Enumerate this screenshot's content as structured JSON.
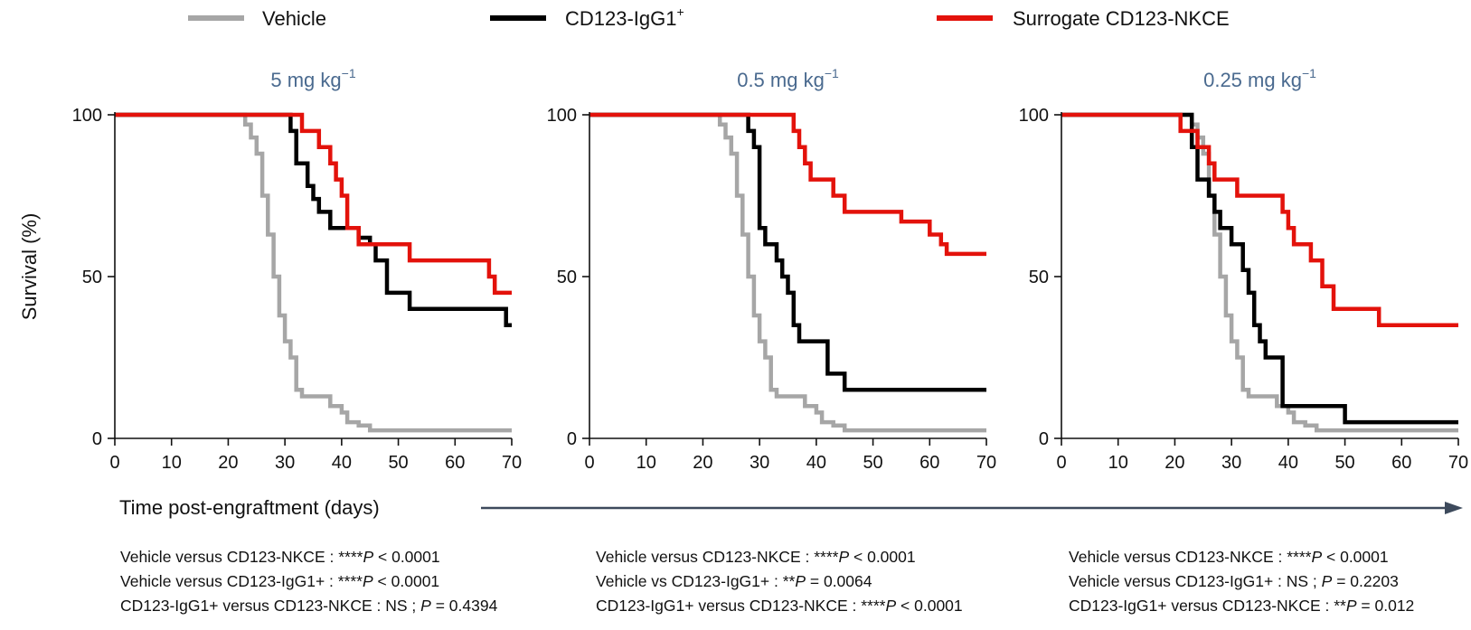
{
  "legend": [
    {
      "label": "Vehicle",
      "color": "#a6a6a6"
    },
    {
      "label": "CD123-IgG1",
      "sup": "+",
      "color": "#000000"
    },
    {
      "label": "Surrogate CD123-NKCE",
      "color": "#e3120b"
    }
  ],
  "y_label": "Survival (%)",
  "x_label": "Time post-engraftment (days)",
  "chart_data": [
    {
      "type": "line",
      "step": true,
      "title": "5 mg kg",
      "title_sup": "−1",
      "xlim": [
        0,
        70
      ],
      "ylim": [
        0,
        100
      ],
      "xticks": [
        0,
        10,
        20,
        30,
        40,
        50,
        60,
        70
      ],
      "yticks": [
        0,
        50,
        100
      ],
      "series": [
        {
          "name": "Vehicle",
          "color": "#a6a6a6",
          "points": [
            [
              0,
              100
            ],
            [
              22,
              100
            ],
            [
              23,
              97
            ],
            [
              24,
              93
            ],
            [
              25,
              88
            ],
            [
              26,
              75
            ],
            [
              27,
              63
            ],
            [
              28,
              50
            ],
            [
              29,
              38
            ],
            [
              30,
              30
            ],
            [
              31,
              25
            ],
            [
              32,
              15
            ],
            [
              33,
              13
            ],
            [
              38,
              10
            ],
            [
              40,
              8
            ],
            [
              41,
              5
            ],
            [
              43,
              4
            ],
            [
              45,
              2.5
            ],
            [
              70,
              2.5
            ]
          ]
        },
        {
          "name": "CD123-IgG1+",
          "color": "#000000",
          "points": [
            [
              0,
              100
            ],
            [
              30,
              100
            ],
            [
              31,
              95
            ],
            [
              32,
              85
            ],
            [
              34,
              78
            ],
            [
              35,
              74
            ],
            [
              36,
              70
            ],
            [
              38,
              65
            ],
            [
              43,
              62
            ],
            [
              45,
              60
            ],
            [
              46,
              55
            ],
            [
              48,
              45
            ],
            [
              52,
              40
            ],
            [
              69,
              40
            ],
            [
              69,
              35
            ],
            [
              70,
              35
            ]
          ]
        },
        {
          "name": "Surrogate CD123-NKCE",
          "color": "#e3120b",
          "points": [
            [
              0,
              100
            ],
            [
              32,
              100
            ],
            [
              33,
              95
            ],
            [
              36,
              90
            ],
            [
              38,
              85
            ],
            [
              39,
              80
            ],
            [
              40,
              75
            ],
            [
              41,
              65
            ],
            [
              43,
              60
            ],
            [
              52,
              55
            ],
            [
              65,
              55
            ],
            [
              66,
              50
            ],
            [
              67,
              45
            ],
            [
              70,
              45
            ]
          ]
        }
      ]
    },
    {
      "type": "line",
      "step": true,
      "title": "0.5 mg kg",
      "title_sup": "−1",
      "xlim": [
        0,
        70
      ],
      "ylim": [
        0,
        100
      ],
      "xticks": [
        0,
        10,
        20,
        30,
        40,
        50,
        60,
        70
      ],
      "yticks": [
        0,
        50,
        100
      ],
      "series": [
        {
          "name": "Vehicle",
          "color": "#a6a6a6",
          "points": [
            [
              0,
              100
            ],
            [
              22,
              100
            ],
            [
              23,
              97
            ],
            [
              24,
              93
            ],
            [
              25,
              88
            ],
            [
              26,
              75
            ],
            [
              27,
              63
            ],
            [
              28,
              50
            ],
            [
              29,
              38
            ],
            [
              30,
              30
            ],
            [
              31,
              25
            ],
            [
              32,
              15
            ],
            [
              33,
              13
            ],
            [
              38,
              10
            ],
            [
              40,
              8
            ],
            [
              41,
              5
            ],
            [
              43,
              4
            ],
            [
              45,
              2.5
            ],
            [
              70,
              2.5
            ]
          ]
        },
        {
          "name": "CD123-IgG1+",
          "color": "#000000",
          "points": [
            [
              0,
              100
            ],
            [
              27,
              100
            ],
            [
              28,
              95
            ],
            [
              29,
              90
            ],
            [
              30,
              65
            ],
            [
              31,
              60
            ],
            [
              33,
              55
            ],
            [
              34,
              50
            ],
            [
              35,
              45
            ],
            [
              36,
              35
            ],
            [
              37,
              30
            ],
            [
              42,
              20
            ],
            [
              45,
              15
            ],
            [
              70,
              15
            ]
          ]
        },
        {
          "name": "Surrogate CD123-NKCE",
          "color": "#e3120b",
          "points": [
            [
              0,
              100
            ],
            [
              35,
              100
            ],
            [
              36,
              95
            ],
            [
              37,
              90
            ],
            [
              38,
              85
            ],
            [
              39,
              80
            ],
            [
              43,
              75
            ],
            [
              45,
              70
            ],
            [
              55,
              67
            ],
            [
              60,
              63
            ],
            [
              62,
              60
            ],
            [
              63,
              57
            ],
            [
              70,
              57
            ]
          ]
        }
      ]
    },
    {
      "type": "line",
      "step": true,
      "title": "0.25 mg kg",
      "title_sup": "−1",
      "xlim": [
        0,
        70
      ],
      "ylim": [
        0,
        100
      ],
      "xticks": [
        0,
        10,
        20,
        30,
        40,
        50,
        60,
        70
      ],
      "yticks": [
        0,
        50,
        100
      ],
      "series": [
        {
          "name": "Vehicle",
          "color": "#a6a6a6",
          "points": [
            [
              0,
              100
            ],
            [
              22,
              100
            ],
            [
              23,
              97
            ],
            [
              24,
              93
            ],
            [
              25,
              88
            ],
            [
              26,
              75
            ],
            [
              27,
              63
            ],
            [
              28,
              50
            ],
            [
              29,
              38
            ],
            [
              30,
              30
            ],
            [
              31,
              25
            ],
            [
              32,
              15
            ],
            [
              33,
              13
            ],
            [
              38,
              10
            ],
            [
              40,
              8
            ],
            [
              41,
              5
            ],
            [
              43,
              4
            ],
            [
              45,
              2.5
            ],
            [
              70,
              2.5
            ]
          ]
        },
        {
          "name": "CD123-IgG1+",
          "color": "#000000",
          "points": [
            [
              0,
              100
            ],
            [
              22,
              100
            ],
            [
              23,
              90
            ],
            [
              24,
              80
            ],
            [
              26,
              75
            ],
            [
              27,
              70
            ],
            [
              28,
              65
            ],
            [
              30,
              60
            ],
            [
              32,
              52
            ],
            [
              33,
              45
            ],
            [
              34,
              35
            ],
            [
              35,
              30
            ],
            [
              36,
              25
            ],
            [
              39,
              10
            ],
            [
              50,
              5
            ],
            [
              70,
              5
            ]
          ]
        },
        {
          "name": "Surrogate CD123-NKCE",
          "color": "#e3120b",
          "points": [
            [
              0,
              100
            ],
            [
              20,
              100
            ],
            [
              21,
              95
            ],
            [
              24,
              90
            ],
            [
              26,
              85
            ],
            [
              27,
              80
            ],
            [
              31,
              75
            ],
            [
              39,
              70
            ],
            [
              40,
              65
            ],
            [
              41,
              60
            ],
            [
              44,
              55
            ],
            [
              46,
              47
            ],
            [
              48,
              40
            ],
            [
              56,
              35
            ],
            [
              70,
              35
            ]
          ]
        }
      ]
    }
  ],
  "stats": [
    [
      {
        "pre": "Vehicle versus CD123-NKCE : ****",
        "p": "P",
        "post": " < 0.0001"
      },
      {
        "pre": "Vehicle versus CD123-IgG1+ : ****",
        "p": "P",
        "post": " < 0.0001"
      },
      {
        "pre": "CD123-IgG1+ versus CD123-NKCE : NS ; ",
        "p": "P",
        "post": " = 0.4394"
      }
    ],
    [
      {
        "pre": "Vehicle versus CD123-NKCE : ****",
        "p": "P",
        "post": " < 0.0001"
      },
      {
        "pre": "Vehicle vs CD123-IgG1+ : **",
        "p": "P",
        "post": " = 0.0064"
      },
      {
        "pre": "CD123-IgG1+ versus CD123-NKCE : ****",
        "p": "P",
        "post": " < 0.0001"
      }
    ],
    [
      {
        "pre": "Vehicle versus CD123-NKCE : ****",
        "p": "P",
        "post": " < 0.0001"
      },
      {
        "pre": "Vehicle versus CD123-IgG1+ : NS ; ",
        "p": "P",
        "post": " = 0.2203"
      },
      {
        "pre": "CD123-IgG1+ versus CD123-NKCE : **",
        "p": "P",
        "post": " = 0.012"
      }
    ]
  ]
}
